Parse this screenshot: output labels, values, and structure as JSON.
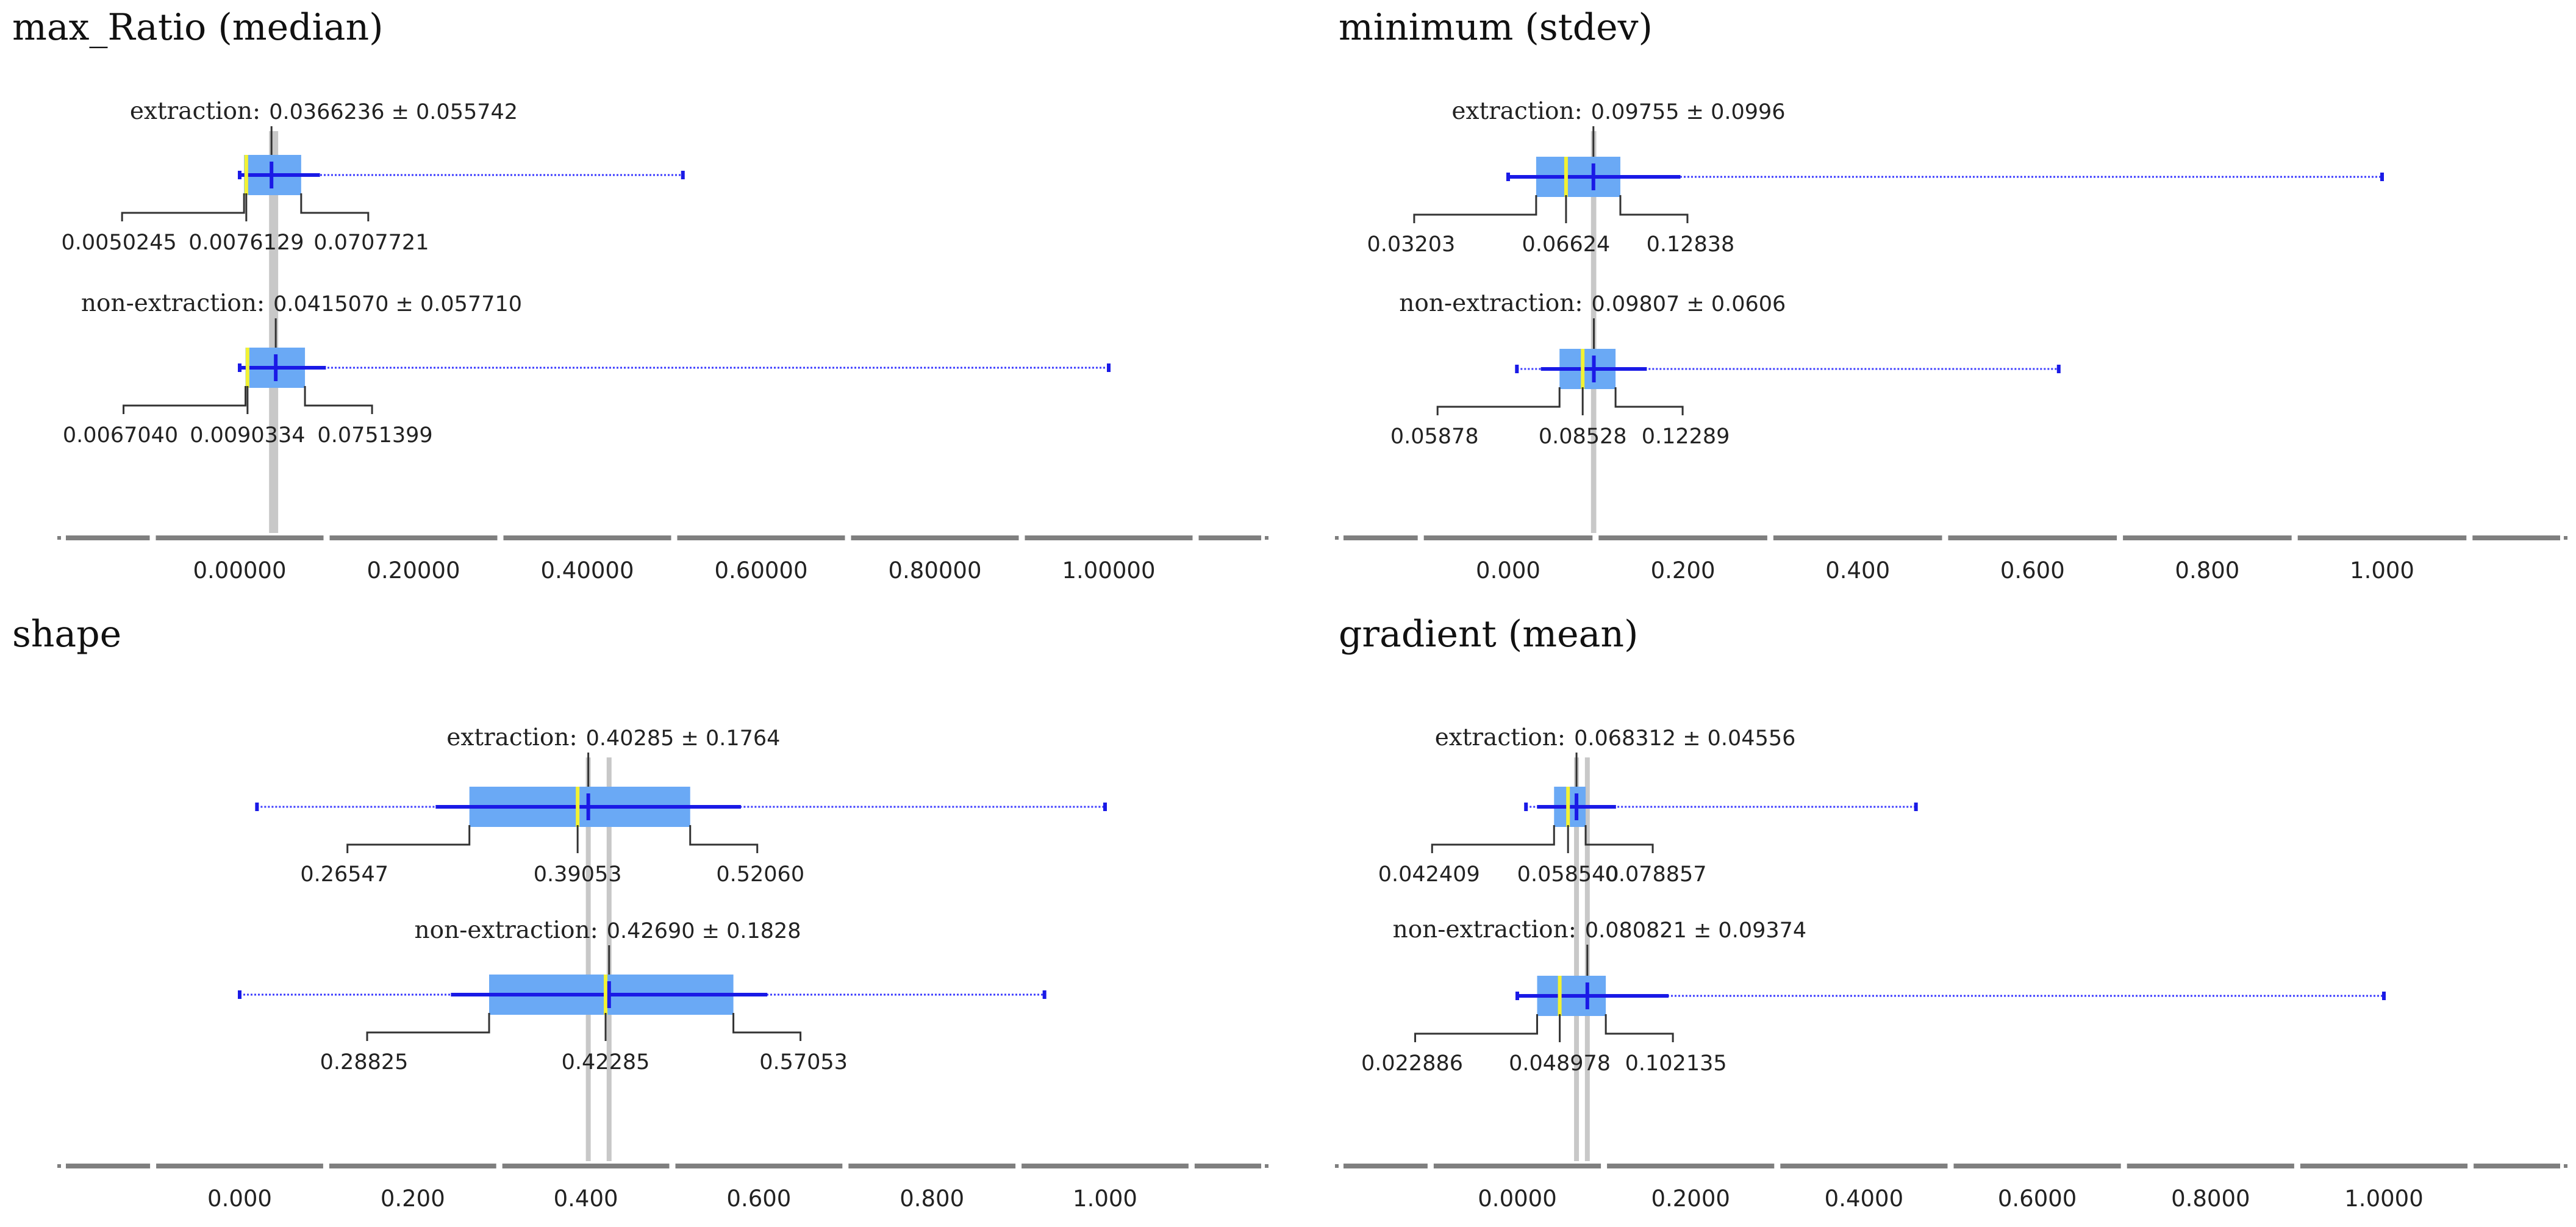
{
  "colors": {
    "box": "#6aa9f5",
    "whisker": "#1a1ae6",
    "range": "#3b3bff",
    "median": "#f2f233",
    "refline": "#c8c8c8",
    "axis": "#7f7f7f",
    "text": "#222222"
  },
  "chart_data": [
    {
      "type": "boxplot",
      "title": "max_Ratio (median)",
      "axis": {
        "range": [
          -0.2,
          1.2
        ],
        "ticks": [
          0,
          0.2,
          0.4,
          0.6,
          0.8,
          1.0
        ],
        "tick_labels": [
          "0.00000",
          "0.20000",
          "0.40000",
          "0.60000",
          "0.80000",
          "1.00000"
        ]
      },
      "series": [
        {
          "name": "extraction",
          "label": "extraction:",
          "stat_text": "0.0366236 ± 0.055742",
          "mean": 0.0366236,
          "sd": 0.055742,
          "q1": 0.0050245,
          "median": 0.0076129,
          "q3": 0.0707721,
          "min": 0.0,
          "max": 0.51,
          "q_labels": [
            "0.0050245",
            "0.0076129",
            "0.0707721"
          ]
        },
        {
          "name": "non-extraction",
          "label": "non-extraction:",
          "stat_text": "0.0415070 ± 0.057710",
          "mean": 0.041507,
          "sd": 0.05771,
          "q1": 0.006704,
          "median": 0.0090334,
          "q3": 0.0751399,
          "min": 0.0,
          "max": 1.0,
          "q_labels": [
            "0.0067040",
            "0.0090334",
            "0.0751399"
          ]
        }
      ]
    },
    {
      "type": "boxplot",
      "title": "minimum (stdev)",
      "axis": {
        "range": [
          -0.2,
          1.2
        ],
        "ticks": [
          0,
          0.2,
          0.4,
          0.6,
          0.8,
          1.0
        ],
        "tick_labels": [
          "0.000",
          "0.200",
          "0.400",
          "0.600",
          "0.800",
          "1.000"
        ]
      },
      "series": [
        {
          "name": "extraction",
          "label": "extraction:",
          "stat_text": "0.09755 ± 0.0996",
          "mean": 0.09755,
          "sd": 0.0996,
          "q1": 0.03203,
          "median": 0.06624,
          "q3": 0.12838,
          "min": 0.0,
          "max": 1.0,
          "q_labels": [
            "0.03203",
            "0.06624",
            "0.12838"
          ]
        },
        {
          "name": "non-extraction",
          "label": "non-extraction:",
          "stat_text": "0.09807 ± 0.0606",
          "mean": 0.09807,
          "sd": 0.0606,
          "q1": 0.05878,
          "median": 0.08528,
          "q3": 0.12289,
          "min": 0.01,
          "max": 0.63,
          "q_labels": [
            "0.05878",
            "0.08528",
            "0.12289"
          ]
        }
      ]
    },
    {
      "type": "boxplot",
      "title": "shape",
      "axis": {
        "range": [
          -0.2,
          1.2
        ],
        "ticks": [
          0,
          0.2,
          0.4,
          0.6,
          0.8,
          1.0
        ],
        "tick_labels": [
          "0.000",
          "0.200",
          "0.400",
          "0.600",
          "0.800",
          "1.000"
        ]
      },
      "series": [
        {
          "name": "extraction",
          "label": "extraction:",
          "stat_text": "0.40285 ± 0.1764",
          "mean": 0.40285,
          "sd": 0.1764,
          "q1": 0.26547,
          "median": 0.39053,
          "q3": 0.5206,
          "min": 0.02,
          "max": 1.0,
          "q_labels": [
            "0.26547",
            "0.39053",
            "0.52060"
          ]
        },
        {
          "name": "non-extraction",
          "label": "non-extraction:",
          "stat_text": "0.42690 ± 0.1828",
          "mean": 0.4269,
          "sd": 0.1828,
          "q1": 0.28825,
          "median": 0.42285,
          "q3": 0.57053,
          "min": 0.0,
          "max": 0.93,
          "q_labels": [
            "0.28825",
            "0.42285",
            "0.57053"
          ]
        }
      ]
    },
    {
      "type": "boxplot",
      "title": "gradient (mean)",
      "axis": {
        "range": [
          -0.2,
          1.2
        ],
        "ticks": [
          0,
          0.2,
          0.4,
          0.6,
          0.8,
          1.0
        ],
        "tick_labels": [
          "0.0000",
          "0.2000",
          "0.4000",
          "0.6000",
          "0.8000",
          "1.0000"
        ]
      },
      "series": [
        {
          "name": "extraction",
          "label": "extraction:",
          "stat_text": "0.068312 ± 0.04556",
          "mean": 0.068312,
          "sd": 0.04556,
          "q1": 0.042409,
          "median": 0.05854,
          "q3": 0.078857,
          "min": 0.01,
          "max": 0.46,
          "q_labels": [
            "0.042409",
            "0.058540",
            "0.078857"
          ]
        },
        {
          "name": "non-extraction",
          "label": "non-extraction:",
          "stat_text": "0.080821 ± 0.09374",
          "mean": 0.080821,
          "sd": 0.09374,
          "q1": 0.022886,
          "median": 0.048978,
          "q3": 0.102135,
          "min": 0.0,
          "max": 1.0,
          "q_labels": [
            "0.022886",
            "0.048978",
            "0.102135"
          ]
        }
      ]
    }
  ]
}
